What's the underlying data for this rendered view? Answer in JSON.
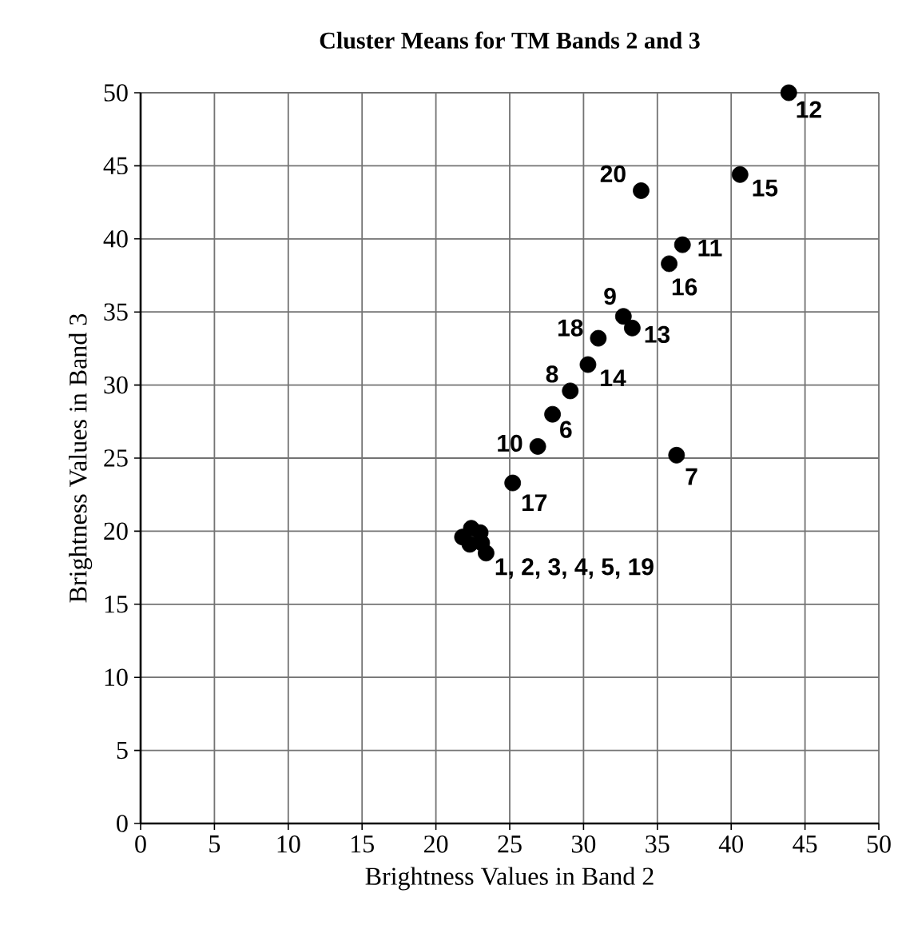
{
  "chart_data": {
    "type": "scatter",
    "title": "Cluster Means for TM Bands 2 and 3",
    "xlabel": "Brightness Values in Band 2",
    "ylabel": "Brightness Values in Band 3",
    "xlim": [
      0,
      50
    ],
    "ylim": [
      0,
      50
    ],
    "xticks": [
      0,
      5,
      10,
      15,
      20,
      25,
      30,
      35,
      40,
      45,
      50
    ],
    "yticks": [
      0,
      5,
      10,
      15,
      20,
      25,
      30,
      35,
      40,
      45,
      50
    ],
    "grid": true,
    "marker": "circle",
    "series": [
      {
        "color": "#000000",
        "x": [
          21.8,
          22.4,
          23.0,
          22.3,
          23.1,
          27.9,
          36.3,
          29.1,
          32.7,
          26.9,
          36.7,
          43.9,
          33.3,
          30.3,
          40.6,
          35.8,
          25.2,
          31.0,
          23.4,
          33.9
        ],
        "values": [
          19.6,
          20.2,
          19.9,
          19.1,
          19.2,
          28.0,
          25.2,
          29.6,
          34.7,
          25.8,
          39.6,
          50.0,
          33.9,
          31.4,
          44.4,
          38.3,
          23.3,
          33.2,
          18.5,
          43.3
        ]
      }
    ],
    "annotations": [
      {
        "text": "1, 2, 3, 4, 5, 19",
        "x": 23.4,
        "y": 18.5
      },
      {
        "text": "6",
        "x": 27.9,
        "y": 28.0
      },
      {
        "text": "7",
        "x": 36.3,
        "y": 25.2
      },
      {
        "text": "8",
        "x": 29.1,
        "y": 29.6
      },
      {
        "text": "9",
        "x": 32.7,
        "y": 34.7
      },
      {
        "text": "10",
        "x": 26.9,
        "y": 25.8
      },
      {
        "text": "11",
        "x": 36.7,
        "y": 39.6
      },
      {
        "text": "12",
        "x": 43.9,
        "y": 50.0
      },
      {
        "text": "13",
        "x": 33.3,
        "y": 33.9
      },
      {
        "text": "14",
        "x": 30.3,
        "y": 31.4
      },
      {
        "text": "15",
        "x": 40.6,
        "y": 44.4
      },
      {
        "text": "16",
        "x": 35.8,
        "y": 38.3
      },
      {
        "text": "17",
        "x": 25.2,
        "y": 23.3
      },
      {
        "text": "18",
        "x": 31.0,
        "y": 33.2
      },
      {
        "text": "20",
        "x": 33.9,
        "y": 43.3
      }
    ]
  }
}
